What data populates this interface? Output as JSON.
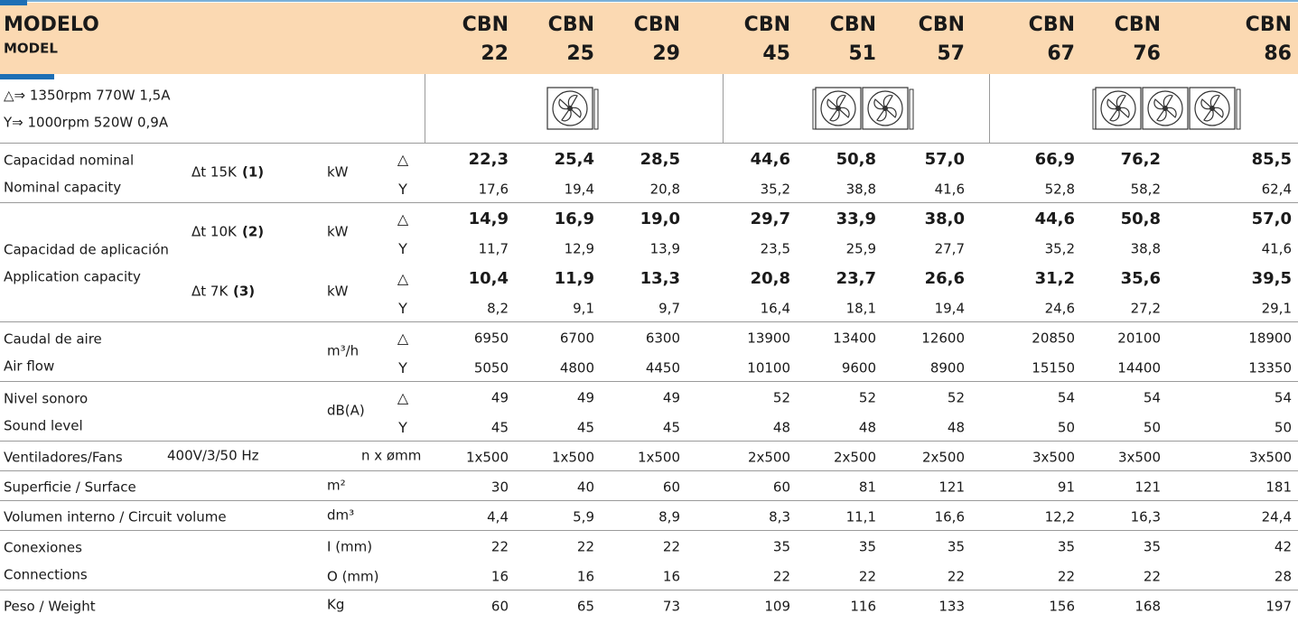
{
  "header": {
    "title": "MODELO",
    "subtitle": "MODEL",
    "models": [
      {
        "name": "CBN",
        "number": "22"
      },
      {
        "name": "CBN",
        "number": "25"
      },
      {
        "name": "CBN",
        "number": "29"
      },
      {
        "name": "CBN",
        "number": "45"
      },
      {
        "name": "CBN",
        "number": "51"
      },
      {
        "name": "CBN",
        "number": "57"
      },
      {
        "name": "CBN",
        "number": "67"
      },
      {
        "name": "CBN",
        "number": "76"
      },
      {
        "name": "CBN",
        "number": "86"
      }
    ]
  },
  "legend": [
    "△⇒ 1350rpm 770W 1,5A",
    "Y⇒ 1000rpm 520W 0,9A"
  ],
  "rows": [
    {
      "labels": [
        "Capacidad nominal",
        "Nominal capacity"
      ],
      "subgroups": [
        {
          "condition": "Δt 15K",
          "note": "(1)",
          "unit": "kW",
          "lines": [
            {
              "symbol": "△",
              "emphasis": true,
              "values": [
                "22,3",
                "25,4",
                "28,5",
                "44,6",
                "50,8",
                "57,0",
                "66,9",
                "76,2",
                "85,5"
              ]
            },
            {
              "symbol": "Y",
              "values": [
                "17,6",
                "19,4",
                "20,8",
                "35,2",
                "38,8",
                "41,6",
                "52,8",
                "58,2",
                "62,4"
              ]
            }
          ]
        }
      ]
    },
    {
      "labels": [
        "Capacidad de aplicación",
        "Application capacity"
      ],
      "subgroups": [
        {
          "condition": "Δt 10K",
          "note": "(2)",
          "unit": "kW",
          "lines": [
            {
              "symbol": "△",
              "emphasis": true,
              "values": [
                "14,9",
                "16,9",
                "19,0",
                "29,7",
                "33,9",
                "38,0",
                "44,6",
                "50,8",
                "57,0"
              ]
            },
            {
              "symbol": "Y",
              "values": [
                "11,7",
                "12,9",
                "13,9",
                "23,5",
                "25,9",
                "27,7",
                "35,2",
                "38,8",
                "41,6"
              ]
            }
          ]
        },
        {
          "condition": "Δt 7K",
          "note": "(3)",
          "unit": "kW",
          "lines": [
            {
              "symbol": "△",
              "emphasis": true,
              "values": [
                "10,4",
                "11,9",
                "13,3",
                "20,8",
                "23,7",
                "26,6",
                "31,2",
                "35,6",
                "39,5"
              ]
            },
            {
              "symbol": "Y",
              "values": [
                "8,2",
                "9,1",
                "9,7",
                "16,4",
                "18,1",
                "19,4",
                "24,6",
                "27,2",
                "29,1"
              ]
            }
          ]
        }
      ]
    },
    {
      "labels": [
        "Caudal de aire",
        "Air flow"
      ],
      "subgroups": [
        {
          "unit": "m³/h",
          "lines": [
            {
              "symbol": "△",
              "values": [
                6950,
                6700,
                6300,
                13900,
                13400,
                12600,
                20850,
                20100,
                18900
              ]
            },
            {
              "symbol": "Y",
              "values": [
                5050,
                4800,
                4450,
                10100,
                9600,
                8900,
                15150,
                14400,
                13350
              ]
            }
          ]
        }
      ]
    },
    {
      "labels": [
        "Nivel sonoro",
        "Sound level"
      ],
      "subgroups": [
        {
          "unit": "dB(A)",
          "lines": [
            {
              "symbol": "△",
              "values": [
                49,
                49,
                49,
                52,
                52,
                52,
                54,
                54,
                54
              ]
            },
            {
              "symbol": "Y",
              "values": [
                45,
                45,
                45,
                48,
                48,
                48,
                50,
                50,
                50
              ]
            }
          ]
        }
      ]
    },
    {
      "labels": [
        "Ventiladores/Fans"
      ],
      "subgroups": [
        {
          "condition": "400V/3/50 Hz",
          "unit": "n x ømm",
          "lines": [
            {
              "values": [
                "1x500",
                "1x500",
                "1x500",
                "2x500",
                "2x500",
                "2x500",
                "3x500",
                "3x500",
                "3x500"
              ]
            }
          ]
        }
      ]
    },
    {
      "labels": [
        "Superficie / Surface"
      ],
      "subgroups": [
        {
          "unit": "m²",
          "lines": [
            {
              "values": [
                30,
                40,
                60,
                60,
                81,
                121,
                91,
                121,
                181
              ]
            }
          ]
        }
      ]
    },
    {
      "labels": [
        "Volumen interno / Circuit volume"
      ],
      "subgroups": [
        {
          "unit": "dm³",
          "lines": [
            {
              "values": [
                "4,4",
                "5,9",
                "8,9",
                "8,3",
                "11,1",
                "16,6",
                "12,2",
                "16,3",
                "24,4"
              ]
            }
          ]
        }
      ]
    },
    {
      "labels": [
        "Conexiones",
        "Connections"
      ],
      "subgroups": [
        {
          "lines": [
            {
              "unit": "I (mm)",
              "values": [
                22,
                22,
                22,
                35,
                35,
                35,
                35,
                35,
                42
              ]
            },
            {
              "unit": "O (mm)",
              "values": [
                16,
                16,
                16,
                22,
                22,
                22,
                22,
                22,
                28
              ]
            }
          ]
        }
      ]
    },
    {
      "labels": [
        "Peso / Weight"
      ],
      "subgroups": [
        {
          "unit": "Kg",
          "lines": [
            {
              "values": [
                60,
                65,
                73,
                109,
                116,
                133,
                156,
                168,
                197
              ]
            }
          ]
        }
      ]
    }
  ]
}
